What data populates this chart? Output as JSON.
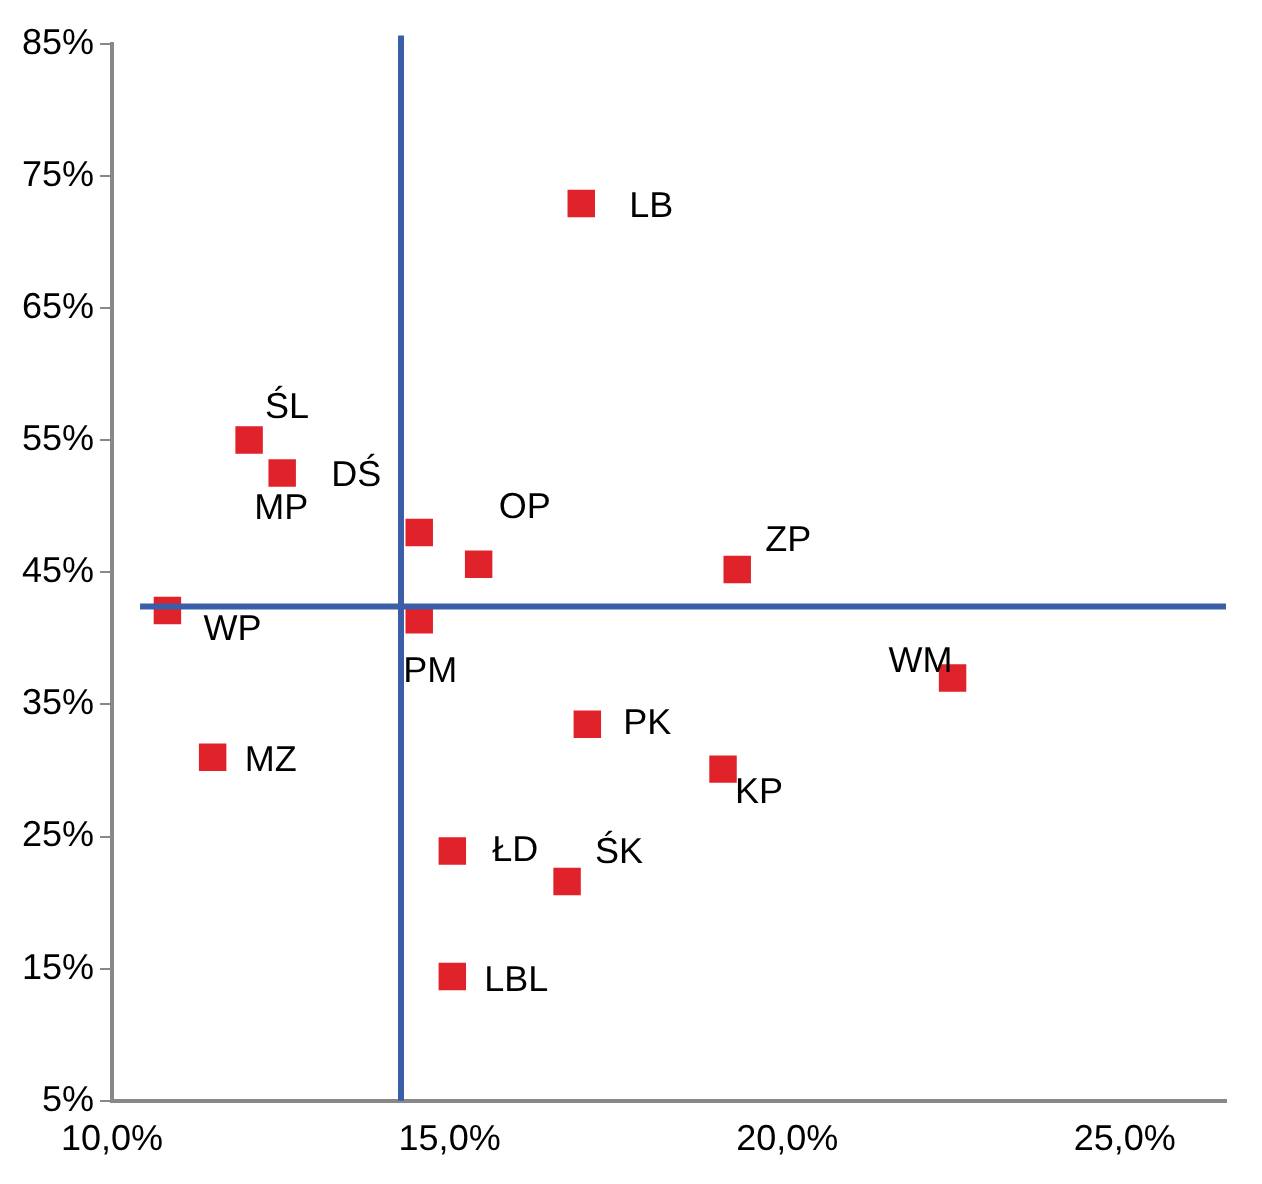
{
  "chart_data": {
    "type": "scatter",
    "marker": "square",
    "grid": false,
    "legend": false,
    "x": [
      16.95,
      12.03,
      12.52,
      14.55,
      15.43,
      19.26,
      10.82,
      14.55,
      22.45,
      17.04,
      11.49,
      19.05,
      15.04,
      16.74,
      15.04
    ],
    "series": [
      {
        "color": "#e0222a",
        "values": [
          72.9,
          55.0,
          52.5,
          48.0,
          45.6,
          45.2,
          42.1,
          41.4,
          37.0,
          33.5,
          31.0,
          30.1,
          23.9,
          21.6,
          14.4
        ]
      }
    ],
    "xlim": [
      10,
      26.5
    ],
    "ylim": [
      5,
      85
    ],
    "xticks": [
      {
        "value": 10,
        "label": "10,0%"
      },
      {
        "value": 15,
        "label": "15,0%"
      },
      {
        "value": 20,
        "label": "20,0%"
      },
      {
        "value": 25,
        "label": "25,0%"
      }
    ],
    "yticks": [
      {
        "value": 5,
        "label": "5%"
      },
      {
        "value": 15,
        "label": "15%"
      },
      {
        "value": 25,
        "label": "25%"
      },
      {
        "value": 35,
        "label": "35%"
      },
      {
        "value": 45,
        "label": "45%"
      },
      {
        "value": 55,
        "label": "55%"
      },
      {
        "value": 65,
        "label": "65%"
      },
      {
        "value": 75,
        "label": "75%"
      },
      {
        "value": 85,
        "label": "85%"
      }
    ],
    "ref_lines": [
      {
        "axis": "x",
        "value": 14.28,
        "color": "#3b5ea8"
      },
      {
        "axis": "y",
        "value": 42.4,
        "color": "#3b5ea8"
      }
    ],
    "annotations": [
      {
        "text": "LB",
        "x": 16.95,
        "y": 72.9
      },
      {
        "text": "ŚL",
        "x": 12.03,
        "y": 55.0
      },
      {
        "text": "MP",
        "x": 12.52,
        "y": 52.5
      },
      {
        "text": "DŚ",
        "x": 14.55,
        "y": 48.0
      },
      {
        "text": "OP",
        "x": 15.43,
        "y": 45.6
      },
      {
        "text": "ZP",
        "x": 19.26,
        "y": 45.2
      },
      {
        "text": "WP",
        "x": 10.82,
        "y": 42.1
      },
      {
        "text": "PM",
        "x": 14.55,
        "y": 41.4
      },
      {
        "text": "WM",
        "x": 22.45,
        "y": 37.0
      },
      {
        "text": "PK",
        "x": 17.04,
        "y": 33.5
      },
      {
        "text": "MZ",
        "x": 11.49,
        "y": 31.0
      },
      {
        "text": "KP",
        "x": 19.05,
        "y": 30.1
      },
      {
        "text": "ŁD",
        "x": 15.04,
        "y": 23.9
      },
      {
        "text": "ŚK",
        "x": 16.74,
        "y": 21.6
      },
      {
        "text": "LBL",
        "x": 15.04,
        "y": 14.4
      }
    ]
  }
}
